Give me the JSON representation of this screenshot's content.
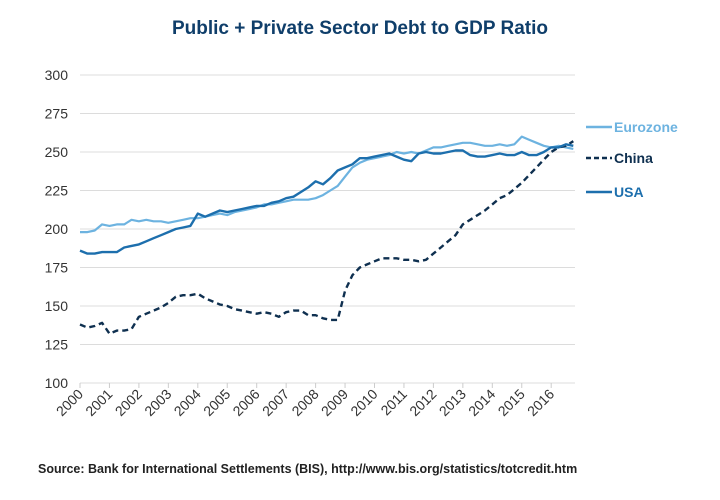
{
  "chart_data": {
    "type": "line",
    "title": "Public + Private Sector Debt to GDP Ratio",
    "xlabel": "",
    "ylabel": "",
    "ylim": [
      100,
      300
    ],
    "yticks": [
      100,
      125,
      150,
      175,
      200,
      225,
      250,
      275,
      300
    ],
    "xticks": [
      "2000",
      "2001",
      "2002",
      "2003",
      "2004",
      "2005",
      "2006",
      "2007",
      "2008",
      "2009",
      "2010",
      "2011",
      "2012",
      "2013",
      "2014",
      "2015",
      "2016"
    ],
    "x_start": 2000,
    "x_step": 0.25,
    "grid": "horizontal",
    "legend_position": "right",
    "series": [
      {
        "name": "Eurozone",
        "color": "#6db3e0",
        "style": "solid",
        "values": [
          198,
          198,
          199,
          203,
          202,
          203,
          203,
          206,
          205,
          206,
          205,
          205,
          204,
          205,
          206,
          207,
          207,
          208,
          209,
          210,
          209,
          211,
          212,
          213,
          214,
          216,
          216,
          217,
          218,
          219,
          219,
          219,
          220,
          222,
          225,
          228,
          234,
          240,
          243,
          245,
          246,
          247,
          248,
          250,
          249,
          250,
          249,
          251,
          253,
          253,
          254,
          255,
          256,
          256,
          255,
          254,
          254,
          255,
          254,
          255,
          260,
          258,
          256,
          254,
          253,
          254,
          253,
          252
        ]
      },
      {
        "name": "China",
        "color": "#0f3050",
        "style": "dashed",
        "values": [
          138,
          136,
          137,
          139,
          132,
          134,
          134,
          135,
          143,
          145,
          147,
          149,
          152,
          156,
          157,
          157,
          158,
          155,
          153,
          151,
          150,
          148,
          147,
          146,
          145,
          146,
          145,
          143,
          146,
          147,
          147,
          144,
          144,
          142,
          141,
          141,
          160,
          170,
          175,
          177,
          179,
          181,
          181,
          181,
          180,
          180,
          179,
          180,
          184,
          188,
          192,
          196,
          203,
          206,
          209,
          212,
          216,
          220,
          222,
          226,
          230,
          235,
          240,
          245,
          250,
          253,
          254,
          257
        ]
      },
      {
        "name": "USA",
        "color": "#1d6fad",
        "style": "solid",
        "values": [
          186,
          184,
          184,
          185,
          185,
          185,
          188,
          189,
          190,
          192,
          194,
          196,
          198,
          200,
          201,
          202,
          210,
          208,
          210,
          212,
          211,
          212,
          213,
          214,
          215,
          215,
          217,
          218,
          220,
          221,
          224,
          227,
          231,
          229,
          233,
          238,
          240,
          242,
          246,
          246,
          247,
          248,
          249,
          247,
          245,
          244,
          249,
          250,
          249,
          249,
          250,
          251,
          251,
          248,
          247,
          247,
          248,
          249,
          248,
          248,
          250,
          248,
          248,
          250,
          253,
          253,
          255,
          254
        ]
      }
    ],
    "source": "Source: Bank for International Settlements (BIS), http://www.bis.org/statistics/totcredit.htm"
  }
}
